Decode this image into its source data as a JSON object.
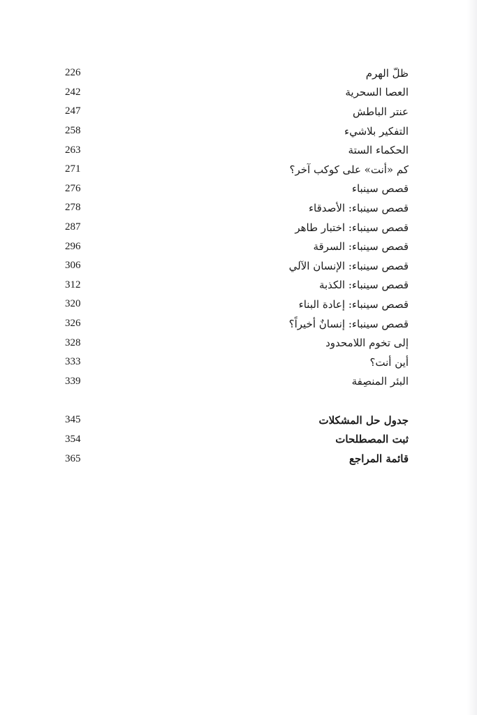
{
  "entries": [
    {
      "title": "ظلّ الهرم",
      "page": "226"
    },
    {
      "title": "العصا السحرية",
      "page": "242"
    },
    {
      "title": "عنتر الباطش",
      "page": "247"
    },
    {
      "title": "التفكير بلاشيء",
      "page": "258"
    },
    {
      "title": "الحكماء الستة",
      "page": "263"
    },
    {
      "title": "كم «أنت» على كوكب آخر؟",
      "page": "271"
    },
    {
      "title": "قصص سينباء",
      "page": "276"
    },
    {
      "title": "قصص سينباء: الأصدقاء",
      "page": "278"
    },
    {
      "title": "قصص سينباء: اختبار طاهر",
      "page": "287"
    },
    {
      "title": "قصص سينباء: السرقة",
      "page": "296"
    },
    {
      "title": "قصص سينباء: الإنسان الآلي",
      "page": "306"
    },
    {
      "title": "قصص سينباء: الكذبة",
      "page": "312"
    },
    {
      "title": "قصص سينباء: إعادة البناء",
      "page": "320"
    },
    {
      "title": "قصص سينباء: إنسانٌ أخيراً؟",
      "page": "326"
    },
    {
      "title": "إلى تخوم اللامحدود",
      "page": "328"
    },
    {
      "title": "أين أنت؟",
      "page": "333"
    },
    {
      "title": "البئر المنصِفة",
      "page": "339"
    }
  ],
  "appendix": [
    {
      "title": "جدول حل المشكلات",
      "page": "345"
    },
    {
      "title": "ثبت المصطلحات",
      "page": "354"
    },
    {
      "title": "قائمة المراجع",
      "page": "365"
    }
  ]
}
